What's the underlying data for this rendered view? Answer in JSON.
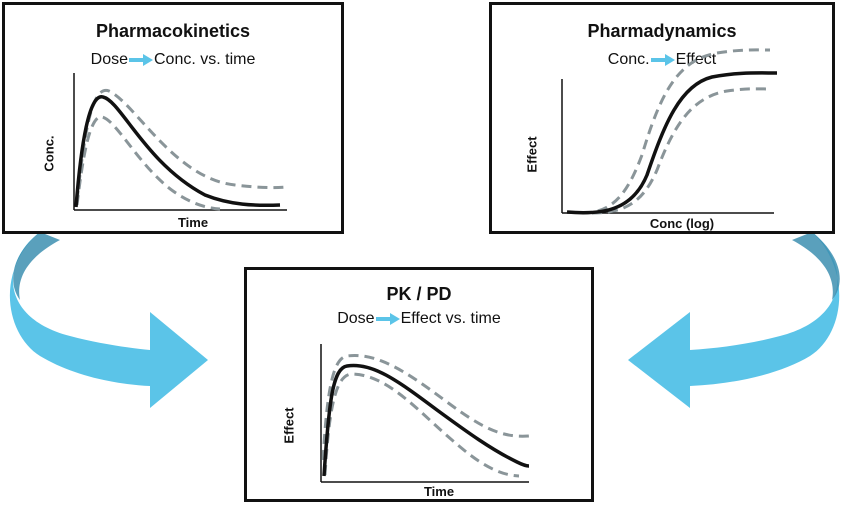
{
  "colors": {
    "cycle_arrow": "#5bc4e8",
    "cycle_arrow_dark": "#3d8fb0",
    "inline_arrow": "#5bc4e8",
    "mean_curve": "#111111",
    "bound_curve": "#8a9599"
  },
  "pk_panel": {
    "title": "Pharmacokinetics",
    "subtitle_left": "Dose",
    "subtitle_right": "Conc. vs. time",
    "xlabel": "Time",
    "ylabel": "Conc."
  },
  "pd_panel": {
    "title": "Pharmadynamics",
    "subtitle_left": "Conc.",
    "subtitle_right": "Effect",
    "xlabel": "Conc (log)",
    "ylabel": "Effect"
  },
  "pkpd_panel": {
    "title": "PK / PD",
    "subtitle_left": "Dose",
    "subtitle_right": "Effect vs. time",
    "xlabel": "Time",
    "ylabel": "Effect"
  },
  "icons": {
    "inline_arrow": "right-arrow-icon",
    "left_cycle_arrow": "curved-arrow-right-icon",
    "right_cycle_arrow": "curved-arrow-left-icon"
  }
}
